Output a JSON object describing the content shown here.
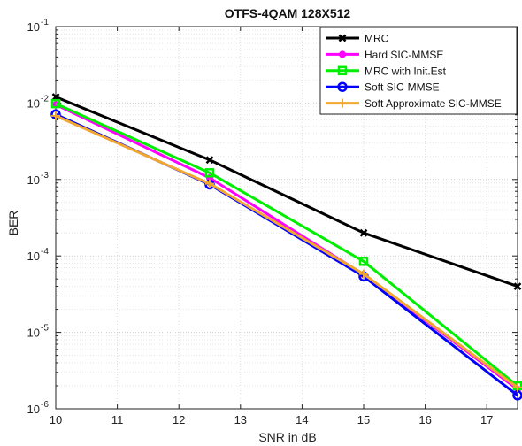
{
  "chart_data": {
    "type": "line",
    "title": "OTFS-4QAM 128X512",
    "xlabel": "SNR in dB",
    "ylabel": "BER",
    "xlim": [
      10,
      17.5
    ],
    "ylim": [
      1e-06,
      0.1
    ],
    "yscale": "log",
    "grid": true,
    "legend_position": "top-right",
    "x_ticks": [
      10,
      11,
      12,
      13,
      14,
      15,
      16,
      17
    ],
    "y_ticks": [
      {
        "value": 1e-06,
        "mantissa": "10",
        "exp": "-6"
      },
      {
        "value": 1e-05,
        "mantissa": "10",
        "exp": "-5"
      },
      {
        "value": 0.0001,
        "mantissa": "10",
        "exp": "-4"
      },
      {
        "value": 0.001,
        "mantissa": "10",
        "exp": "-3"
      },
      {
        "value": 0.01,
        "mantissa": "10",
        "exp": "-2"
      },
      {
        "value": 0.1,
        "mantissa": "10",
        "exp": "-1"
      }
    ],
    "x": [
      10,
      12.5,
      15,
      17.5
    ],
    "series": [
      {
        "name": "MRC",
        "color": "#000000",
        "marker": "x",
        "values": [
          0.012,
          0.0018,
          0.0002,
          4e-05
        ]
      },
      {
        "name": "Hard SIC-MMSE",
        "color": "#ff00ff",
        "marker": "dot",
        "values": [
          0.0095,
          0.00105,
          5.7e-05,
          1.8e-06
        ]
      },
      {
        "name": "MRC with Init.Est",
        "color": "#00ee00",
        "marker": "square",
        "values": [
          0.0098,
          0.00122,
          8.5e-05,
          2e-06
        ]
      },
      {
        "name": "Soft SIC-MMSE",
        "color": "#0000ff",
        "marker": "circle",
        "values": [
          0.0071,
          0.00086,
          5.4e-05,
          1.5e-06
        ]
      },
      {
        "name": "Soft Approximate SIC-MMSE",
        "color": "#f0a830",
        "marker": "plus",
        "values": [
          0.0068,
          0.00088,
          5.8e-05,
          1.9e-06
        ]
      }
    ]
  }
}
